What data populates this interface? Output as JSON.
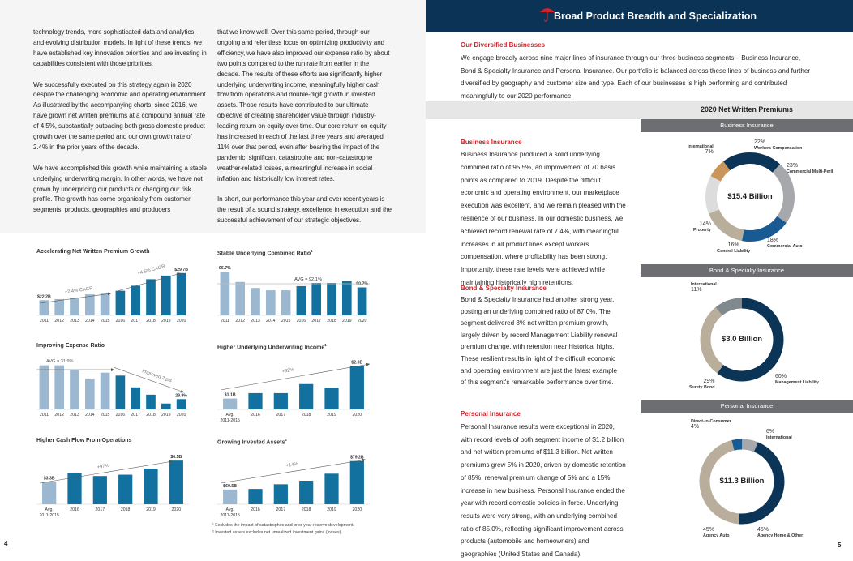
{
  "left_page": {
    "page_number": "4",
    "column1": [
      "technology trends, more sophisticated data and analytics, and evolving distribution models. In light of these trends, we have established key innovation priorities and are investing in capabilities consistent with those priorities.",
      "We successfully executed on this strategy again in 2020 despite the challenging economic and operating environment. As illustrated by the accompanying charts, since 2016, we have grown net written premiums at a compound annual rate of 4.5%, substantially outpacing both gross domestic product growth over the same period and our own growth rate of 2.4% in the prior years of the decade.",
      "We have accomplished this growth while maintaining a stable underlying underwriting margin. In other words, we have not grown by underpricing our products or changing our risk profile. The growth has come organically from customer segments, products, geographies and producers"
    ],
    "column2": [
      "that we know well. Over this same period, through our ongoing and relentless focus on optimizing productivity and efficiency, we have also improved our expense ratio by about two points compared to the run rate from earlier in the decade. The results of these efforts are significantly higher underlying underwriting income, meaningfully higher cash flow from operations and double-digit growth in invested assets. Those results have contributed to our ultimate objective of creating shareholder value through industry-leading return on equity over time. Our core return on equity has increased in each of the last three years and averaged 11% over that period, even after bearing the impact of the pandemic, significant catastrophe and non-catastrophe weather-related losses, a meaningful increase in social inflation and historically low interest rates.",
      "In short, our performance this year and over recent years is the result of a sound strategy, excellence in execution and the successful achievement of our strategic objectives."
    ],
    "footnotes": [
      "¹ Excludes the impact of catastrophes and prior year reserve development.",
      "² Invested assets excludes net unrealized investment gains (losses)."
    ]
  },
  "chart_colors": {
    "earlier": "#9cb8d1",
    "recent": "#12719f",
    "axis": "#cccccc",
    "arrow": "#555555"
  },
  "chart_data": [
    {
      "type": "bar",
      "title": "Accelerating Net Written Premium Growth",
      "sup": "",
      "categories": [
        "2011",
        "2012",
        "2013",
        "2014",
        "2015",
        "2016",
        "2017",
        "2018",
        "2019",
        "2020"
      ],
      "values": [
        22.2,
        22.5,
        22.9,
        23.8,
        24.0,
        24.8,
        26.2,
        28.0,
        29.0,
        29.7
      ],
      "ylim": [
        18,
        31
      ],
      "data_labels": [
        {
          "index": 0,
          "text": "$22.2B"
        },
        {
          "index": 9,
          "text": "$29.7B"
        }
      ],
      "annotations": [
        "+2.4% CAGR",
        "+4.5% CAGR"
      ]
    },
    {
      "type": "bar",
      "title": "Stable Underlying Combined Ratio",
      "sup": "1",
      "categories": [
        "2011",
        "2012",
        "2013",
        "2014",
        "2015",
        "2016",
        "2017",
        "2018",
        "2019",
        "2020"
      ],
      "values": [
        96.7,
        92.8,
        90.5,
        89.6,
        89.6,
        91.2,
        92.4,
        92.4,
        93.1,
        90.7
      ],
      "ylim": [
        80,
        98
      ],
      "data_labels": [
        {
          "index": 0,
          "text": "96.7%"
        },
        {
          "index": 9,
          "text": "90.7%"
        }
      ],
      "reference_line": {
        "value": 92.1,
        "label": "AVG = 92.1%"
      }
    },
    {
      "type": "bar",
      "title": "Improving Expense Ratio",
      "sup": "",
      "categories": [
        "2011",
        "2012",
        "2013",
        "2014",
        "2015",
        "2016",
        "2017",
        "2018",
        "2019",
        "2020"
      ],
      "values": [
        32.2,
        32.2,
        31.9,
        31.3,
        31.7,
        31.5,
        30.7,
        30.2,
        29.6,
        29.9
      ],
      "ylim": [
        29.2,
        32.4
      ],
      "data_labels": [
        {
          "index": 9,
          "text": "29.9%"
        }
      ],
      "reference_line": {
        "value": 31.9,
        "label": "AVG = 31.9%"
      },
      "annotations": [
        "Improved 2 pts"
      ]
    },
    {
      "type": "bar",
      "title": "Higher Underlying Underwriting Income",
      "sup": "1",
      "categories": [
        "Avg. 2011-2015",
        "2016",
        "2017",
        "2018",
        "2019",
        "2020"
      ],
      "values": [
        1.1,
        1.25,
        1.25,
        1.5,
        1.4,
        2.0
      ],
      "ylim": [
        0.8,
        2.1
      ],
      "data_labels": [
        {
          "index": 0,
          "text": "$1.1B"
        },
        {
          "index": 5,
          "text": "$2.0B"
        }
      ],
      "annotations": [
        "+82%"
      ]
    },
    {
      "type": "bar",
      "title": "Higher Cash Flow From Operations",
      "sup": "",
      "categories": [
        "Avg. 2011-2015",
        "2016",
        "2017",
        "2018",
        "2019",
        "2020"
      ],
      "values": [
        3.3,
        4.6,
        4.2,
        4.4,
        5.3,
        6.5
      ],
      "ylim": [
        0,
        7
      ],
      "data_labels": [
        {
          "index": 0,
          "text": "$3.3B"
        },
        {
          "index": 5,
          "text": "$6.5B"
        }
      ],
      "annotations": [
        "+97%"
      ]
    },
    {
      "type": "bar",
      "title": "Growing Invested Assets",
      "sup": "2",
      "categories": [
        "Avg. 2011-2015",
        "2016",
        "2017",
        "2018",
        "2019",
        "2020"
      ],
      "values": [
        69.5,
        69.7,
        71.3,
        72.5,
        74.9,
        79.2
      ],
      "ylim": [
        64.5,
        80.5
      ],
      "data_labels": [
        {
          "index": 0,
          "text": "$69.5B"
        },
        {
          "index": 5,
          "text": "$79.2B"
        }
      ],
      "annotations": [
        "+14%"
      ]
    }
  ],
  "right_page": {
    "page_number": "5",
    "header_title": "Broad Product Breadth and Specialization",
    "intro_heading": "Our Diversified Businesses",
    "intro_text": "We engage broadly across nine major lines of insurance through our three business segments – Business Insurance, Bond & Specialty Insurance and Personal Insurance. Our portfolio is balanced across these lines of business and further diversified by geography and customer size and type. Each of our businesses is high performing and contributed meaningfully to our 2020 performance.",
    "nwp_title": "2020 Net Written Premiums",
    "segments": [
      {
        "heading": "Business Insurance",
        "text": "Business Insurance produced a solid underlying combined ratio of 95.5%, an improvement of 70 basis points as compared to 2019. Despite the difficult economic and operating environment, our marketplace execution was excellent, and we remain pleased with the resilience of our business. In our domestic business, we achieved record renewal rate of 7.4%, with meaningful increases in all product lines except workers compensation, where profitability has been strong. Importantly, these rate levels were achieved while maintaining historically high retentions.",
        "donut_title": "Business Insurance",
        "total": "$15.4 Billion",
        "slices": [
          {
            "label": "International",
            "pct": 7,
            "color": "#c9955a"
          },
          {
            "label": "Workers Compensation",
            "pct": 22,
            "color": "#0b3457"
          },
          {
            "label": "Commercial Multi-Peril",
            "pct": 23,
            "color": "#a6a8ab"
          },
          {
            "label": "Commercial Auto",
            "pct": 18,
            "color": "#1a5a92"
          },
          {
            "label": "General Liability",
            "pct": 16,
            "color": "#b9ae9b"
          },
          {
            "label": "Property",
            "pct": 14,
            "color": "#dcdcdc"
          }
        ]
      },
      {
        "heading": "Bond & Specialty Insurance",
        "text": "Bond & Specialty Insurance had another strong year, posting an underlying combined ratio of 87.0%. The segment delivered 8% net written premium growth, largely driven by record Management Liability renewal premium change, with retention near historical highs. These resilient results in light of the difficult economic and operating environment are just the latest example of this segment's remarkable performance over time.",
        "donut_title": "Bond & Specialty Insurance",
        "total": "$3.0 Billion",
        "slices": [
          {
            "label": "Management Liability",
            "pct": 60,
            "color": "#0b3457"
          },
          {
            "label": "Surety Bond",
            "pct": 29,
            "color": "#b9ae9b"
          },
          {
            "label": "International",
            "pct": 11,
            "color": "#7f898e"
          }
        ]
      },
      {
        "heading": "Personal Insurance",
        "text": "Personal Insurance results were exceptional in 2020, with record levels of both segment income of $1.2 billion and net written premiums of $11.3 billion. Net written premiums grew 5% in 2020, driven by domestic retention of 85%, renewal premium change of 5% and a 15% increase in new business. Personal Insurance ended the year with record domestic policies-in-force. Underlying results were very strong, with an underlying combined ratio of 85.0%, reflecting significant improvement across products (automobile and homeowners) and geographies (United States and Canada).",
        "donut_title": "Personal Insurance",
        "total": "$11.3 Billion",
        "slices": [
          {
            "label": "Direct-to-Consumer",
            "pct": 4,
            "color": "#1a5a92"
          },
          {
            "label": "International",
            "pct": 6,
            "color": "#a6a8ab"
          },
          {
            "label": "Agency Home & Other",
            "pct": 45,
            "color": "#0b3457"
          },
          {
            "label": "Agency Auto",
            "pct": 45,
            "color": "#b9ae9b"
          }
        ]
      }
    ],
    "brand_colors": {
      "header": "#0a3356",
      "accent_red": "#d2232a"
    }
  }
}
